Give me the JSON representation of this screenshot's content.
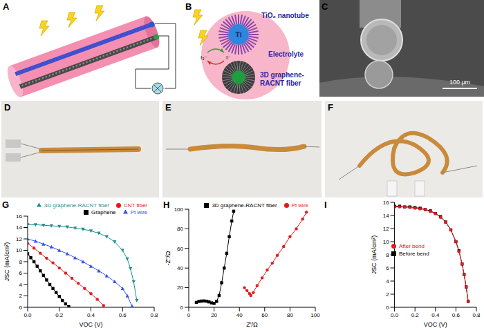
{
  "panels": {
    "A": {
      "label": "A"
    },
    "B": {
      "label": "B",
      "core": "Ti",
      "nanotube": "TiO₂ nanotube",
      "electrolyte": "Electrolyte",
      "fiber": [
        "3D graphene-",
        "RACNT fiber"
      ],
      "oxidized": "I₃⁻",
      "reduced": "I⁻"
    },
    "C": {
      "label": "C",
      "scale": "100 μm"
    },
    "D": {
      "label": "D"
    },
    "E": {
      "label": "E"
    },
    "F": {
      "label": "F"
    }
  },
  "chart_data": [
    {
      "type": "line",
      "panel": "G",
      "x_label": "VOC (V)",
      "y_label": "JSC (mA/cm²)",
      "xlim": [
        0,
        0.8
      ],
      "xticks": [
        {
          "value": 0,
          "label": "0.0"
        },
        0.2,
        0.4,
        0.6,
        0.8
      ],
      "ylim": [
        0,
        16
      ],
      "yticks": [
        0,
        2,
        4,
        6,
        8,
        10,
        12,
        14,
        16
      ],
      "legend": "top",
      "series": [
        {
          "name": "Graphene",
          "color": "#000000",
          "marker": "square",
          "x": [
            0,
            0.02,
            0.04,
            0.06,
            0.08,
            0.1,
            0.12,
            0.14,
            0.16,
            0.18,
            0.2,
            0.22,
            0.24,
            0.26
          ],
          "values": [
            9.4,
            8.7,
            8.0,
            7.2,
            6.4,
            5.6,
            4.8,
            4.0,
            3.3,
            2.6,
            1.9,
            1.2,
            0.6,
            0.1
          ]
        },
        {
          "name": "CNT fiber",
          "color": "#e41a1c",
          "marker": "circle",
          "x": [
            0,
            0.04,
            0.08,
            0.12,
            0.16,
            0.2,
            0.24,
            0.28,
            0.32,
            0.36,
            0.4,
            0.44,
            0.48
          ],
          "values": [
            11.2,
            10.4,
            9.5,
            8.6,
            7.8,
            6.9,
            6.0,
            5.1,
            4.2,
            3.3,
            2.4,
            1.4,
            0.3
          ]
        },
        {
          "name": "Pt wire",
          "color": "#3050f0",
          "marker": "triangle",
          "x": [
            0,
            0.05,
            0.1,
            0.15,
            0.2,
            0.25,
            0.3,
            0.35,
            0.4,
            0.45,
            0.5,
            0.55,
            0.6,
            0.63,
            0.66
          ],
          "values": [
            12.0,
            11.6,
            11.1,
            10.6,
            10.0,
            9.4,
            8.7,
            8.0,
            7.2,
            6.4,
            5.5,
            4.5,
            3.3,
            2.0,
            0.2
          ]
        },
        {
          "name": "3D graphene-RACNT fiber",
          "color": "#1f8f8f",
          "marker": "triangle-down",
          "x": [
            0,
            0.05,
            0.1,
            0.15,
            0.2,
            0.25,
            0.3,
            0.35,
            0.4,
            0.45,
            0.5,
            0.55,
            0.6,
            0.63,
            0.65,
            0.67,
            0.69
          ],
          "values": [
            14.5,
            14.5,
            14.4,
            14.3,
            14.2,
            14.1,
            13.9,
            13.7,
            13.4,
            13.0,
            12.4,
            11.5,
            10.0,
            8.5,
            6.8,
            4.5,
            1.2
          ]
        }
      ]
    },
    {
      "type": "line",
      "panel": "H",
      "x_label": "Z'/Ω",
      "y_label": "-Z''/Ω",
      "xlim": [
        0,
        100
      ],
      "xticks": [
        0,
        20,
        40,
        60,
        80,
        100
      ],
      "ylim": [
        0,
        100
      ],
      "yticks": [
        0,
        20,
        40,
        60,
        80,
        100
      ],
      "legend": "top",
      "series": [
        {
          "name": "3D graphene-RACNT fiber",
          "color": "#000000",
          "marker": "square",
          "x": [
            6,
            8,
            10,
            12,
            14,
            16,
            18,
            20,
            22,
            24,
            26,
            28,
            30,
            32,
            34,
            35.5
          ],
          "values": [
            5,
            6,
            6.3,
            6.5,
            6.2,
            5.5,
            4.5,
            4,
            6,
            12,
            25,
            40,
            55,
            72,
            88,
            98
          ]
        },
        {
          "name": "Pt wire",
          "color": "#e41a1c",
          "marker": "circle",
          "x": [
            44,
            46,
            48,
            49,
            51,
            54,
            58,
            62,
            66,
            70,
            75,
            80,
            85,
            90,
            93
          ],
          "values": [
            20,
            17,
            14,
            12,
            15,
            22,
            30,
            38,
            45,
            53,
            62,
            72,
            80,
            90,
            97
          ]
        }
      ]
    },
    {
      "type": "line",
      "panel": "I",
      "x_label": "VOC (V)",
      "y_label": "JSC (mA/cm²)",
      "xlim": [
        0,
        0.8
      ],
      "xticks": [
        {
          "value": 0,
          "label": "0.0"
        },
        0.2,
        0.4,
        0.6,
        0.8
      ],
      "ylim": [
        0,
        16
      ],
      "yticks": [
        0,
        2,
        4,
        6,
        8,
        10,
        12,
        14,
        16
      ],
      "legend": "center",
      "series": [
        {
          "name": "Before bend",
          "color": "#000000",
          "marker": "square",
          "x": [
            0,
            0.05,
            0.1,
            0.15,
            0.2,
            0.25,
            0.3,
            0.35,
            0.4,
            0.45,
            0.5,
            0.55,
            0.6,
            0.63,
            0.66,
            0.68,
            0.7,
            0.72
          ],
          "values": [
            15.4,
            15.4,
            15.3,
            15.3,
            15.2,
            15.1,
            14.9,
            14.7,
            14.3,
            13.8,
            13.0,
            11.8,
            10.0,
            8.6,
            6.6,
            5.0,
            3.1,
            0.9
          ]
        },
        {
          "name": "After bend",
          "color": "#e41a1c",
          "marker": "circle",
          "x": [
            0,
            0.05,
            0.1,
            0.15,
            0.2,
            0.25,
            0.3,
            0.35,
            0.4,
            0.45,
            0.5,
            0.55,
            0.6,
            0.63,
            0.66,
            0.68,
            0.7,
            0.72
          ],
          "values": [
            15.3,
            15.3,
            15.3,
            15.2,
            15.1,
            15.0,
            14.9,
            14.6,
            14.3,
            13.7,
            13.0,
            11.8,
            10.0,
            8.5,
            6.6,
            5.0,
            3.1,
            0.9
          ]
        }
      ]
    }
  ]
}
